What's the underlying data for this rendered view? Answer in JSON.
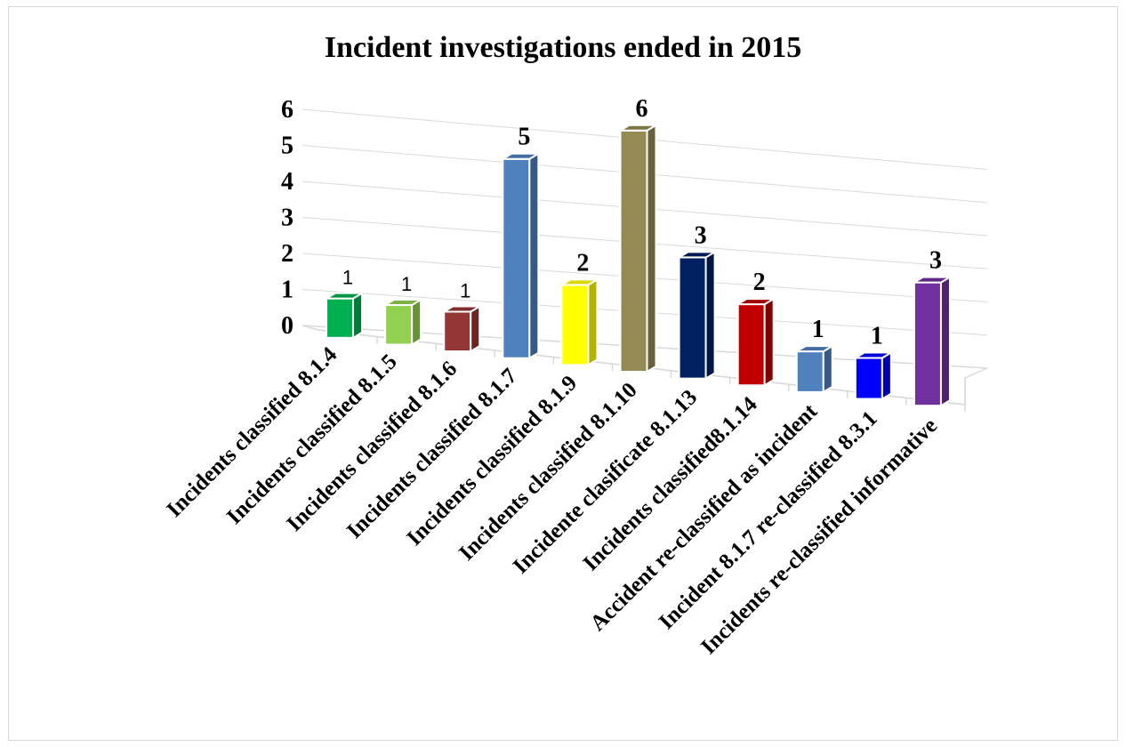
{
  "chart_data": {
    "type": "bar",
    "title": "Incident investigations ended in 2015",
    "xlabel": "",
    "ylabel": "",
    "ylim": [
      0,
      6
    ],
    "yticks": [
      0,
      1,
      2,
      3,
      4,
      5,
      6
    ],
    "grid": true,
    "legend": "none",
    "categories": [
      "Incidents classified 8.1.4",
      "Incidents classified 8.1.5",
      "Incidents classified 8.1.6",
      "Incidents classified 8.1.7",
      "Incidents classified 8.1.9",
      "Incidents classified 8.1.10",
      "Incidente clasificate 8.1.13",
      "Incidents classified8.1.14",
      "Accident re-classified as incident",
      "Incident 8.1.7 re-classified 8.3.1",
      "Incidents re-classified informative"
    ],
    "values": [
      1,
      1,
      1,
      5,
      2,
      6,
      3,
      2,
      1,
      1,
      3
    ],
    "data_labels": [
      "1",
      "1",
      "1",
      "5",
      "2",
      "6",
      "3",
      "2",
      "1",
      "1",
      "3"
    ],
    "colors": [
      "#00b050",
      "#92d050",
      "#943634",
      "#4f81bd",
      "#ffff00",
      "#948a54",
      "#002060",
      "#c00000",
      "#4f81bd",
      "#0000ff",
      "#7030a0"
    ]
  }
}
